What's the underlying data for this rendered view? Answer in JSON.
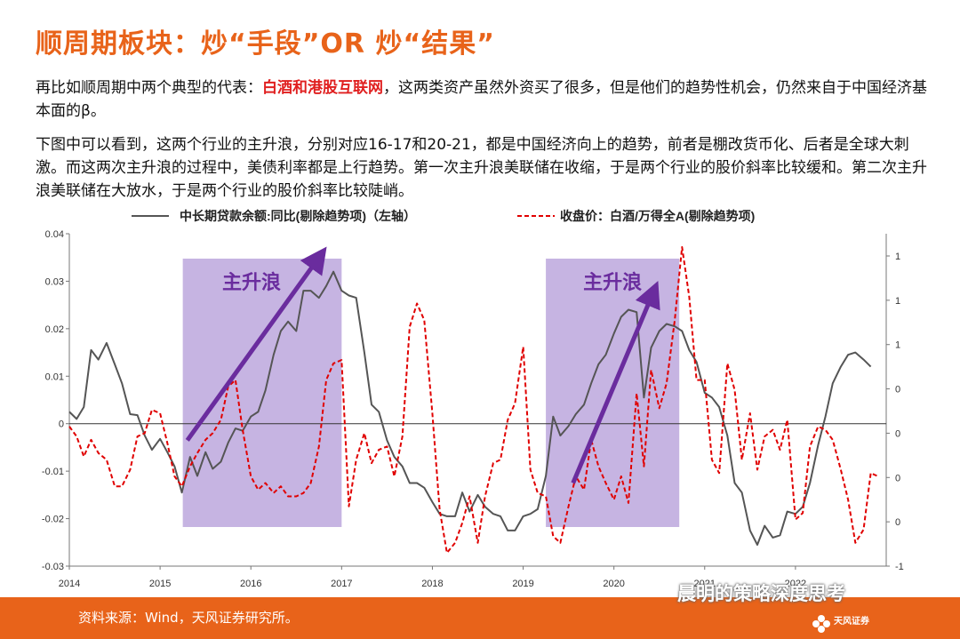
{
  "title": "顺周期板块：炒“手段”OR 炒“结果”",
  "paragraph1": {
    "before": "再比如顺周期中两个典型的代表：",
    "highlight": "白酒和港股互联网",
    "after": "，这两类资产虽然外资买了很多，但是他们的趋势性机会，仍然来自于中国经济基本面的β。"
  },
  "paragraph2": "下图中可以看到，这两个行业的主升浪，分别对应16-17和20-21，都是中国经济向上的趋势，前者是棚改货币化、后者是全球大刺激。而这两次主升浪的过程中，美债利率都是上行趋势。第一次主升浪美联储在收缩，于是两个行业的股价斜率比较缓和。第二次主升浪美联储在大放水，于是两个行业的股价斜率比较陡峭。",
  "footer": {
    "source": "资料来源：Wind，天风证券研究所。",
    "wechat": "晨明的策略深度思考",
    "logo": "天风证券"
  },
  "colors": {
    "accent": "#E8631A",
    "highlight": "#E02020",
    "series1": "#555555",
    "series2": "#E00000",
    "band": "#B39BD8",
    "arrow": "#6A2C9E"
  },
  "chart_data": {
    "type": "line",
    "x_ticks": [
      "2014",
      "2015",
      "2016",
      "2017",
      "2018",
      "2019",
      "2020",
      "2021",
      "2022"
    ],
    "x_range": [
      2014.0,
      2023.0
    ],
    "left_axis": {
      "ticks": [
        "0.04",
        "0.03",
        "0.02",
        "0.01",
        "0",
        "-0.01",
        "-0.02",
        "-0.03"
      ],
      "range": [
        -0.03,
        0.04
      ]
    },
    "right_axis": {
      "ticks": [
        "1",
        "1",
        "1",
        "0",
        "0",
        "0",
        "0",
        "-1"
      ],
      "range": [
        -1.0,
        1.0
      ]
    },
    "series": [
      {
        "name": "中长期贷款余额:同比(剔除趋势项)（左轴）",
        "axis": "left",
        "style": "solid",
        "points": [
          [
            2014.0,
            0.0025
          ],
          [
            2014.08,
            0.001
          ],
          [
            2014.16,
            0.0035
          ],
          [
            2014.24,
            0.0155
          ],
          [
            2014.32,
            0.0135
          ],
          [
            2014.41,
            0.017
          ],
          [
            2014.5,
            0.0125
          ],
          [
            2014.58,
            0.0085
          ],
          [
            2014.67,
            0.002
          ],
          [
            2014.75,
            0.0018
          ],
          [
            2014.83,
            -0.0025
          ],
          [
            2014.91,
            -0.0055
          ],
          [
            2015.0,
            -0.0032
          ],
          [
            2015.08,
            -0.006
          ],
          [
            2015.16,
            -0.009
          ],
          [
            2015.24,
            -0.0145
          ],
          [
            2015.33,
            -0.007
          ],
          [
            2015.41,
            -0.011
          ],
          [
            2015.5,
            -0.006
          ],
          [
            2015.58,
            -0.0095
          ],
          [
            2015.67,
            -0.008
          ],
          [
            2015.75,
            -0.004
          ],
          [
            2015.83,
            -0.001
          ],
          [
            2015.91,
            -0.0015
          ],
          [
            2016.0,
            0.0015
          ],
          [
            2016.08,
            0.0025
          ],
          [
            2016.16,
            0.007
          ],
          [
            2016.25,
            0.0145
          ],
          [
            2016.33,
            0.0195
          ],
          [
            2016.41,
            0.0215
          ],
          [
            2016.5,
            0.0195
          ],
          [
            2016.58,
            0.028
          ],
          [
            2016.66,
            0.028
          ],
          [
            2016.75,
            0.0265
          ],
          [
            2016.83,
            0.029
          ],
          [
            2016.91,
            0.032
          ],
          [
            2017.0,
            0.028
          ],
          [
            2017.08,
            0.027
          ],
          [
            2017.16,
            0.0265
          ],
          [
            2017.25,
            0.015
          ],
          [
            2017.33,
            0.004
          ],
          [
            2017.41,
            0.0025
          ],
          [
            2017.5,
            -0.0035
          ],
          [
            2017.58,
            -0.007
          ],
          [
            2017.67,
            -0.009
          ],
          [
            2017.75,
            -0.0125
          ],
          [
            2017.83,
            -0.0125
          ],
          [
            2017.91,
            -0.0135
          ],
          [
            2018.0,
            -0.0165
          ],
          [
            2018.08,
            -0.019
          ],
          [
            2018.16,
            -0.0195
          ],
          [
            2018.25,
            -0.0195
          ],
          [
            2018.33,
            -0.0145
          ],
          [
            2018.41,
            -0.0185
          ],
          [
            2018.5,
            -0.015
          ],
          [
            2018.58,
            -0.0175
          ],
          [
            2018.67,
            -0.019
          ],
          [
            2018.75,
            -0.0195
          ],
          [
            2018.83,
            -0.0225
          ],
          [
            2018.91,
            -0.0225
          ],
          [
            2019.0,
            -0.0195
          ],
          [
            2019.08,
            -0.019
          ],
          [
            2019.16,
            -0.018
          ],
          [
            2019.25,
            -0.011
          ],
          [
            2019.33,
            0.0015
          ],
          [
            2019.41,
            -0.0025
          ],
          [
            2019.5,
            -0.0005
          ],
          [
            2019.58,
            0.002
          ],
          [
            2019.67,
            0.004
          ],
          [
            2019.75,
            0.0085
          ],
          [
            2019.83,
            0.0125
          ],
          [
            2019.91,
            0.0145
          ],
          [
            2020.0,
            0.019
          ],
          [
            2020.08,
            0.0225
          ],
          [
            2020.16,
            0.024
          ],
          [
            2020.25,
            0.0235
          ],
          [
            2020.33,
            0.0055
          ],
          [
            2020.41,
            0.016
          ],
          [
            2020.5,
            0.0195
          ],
          [
            2020.58,
            0.021
          ],
          [
            2020.67,
            0.0205
          ],
          [
            2020.75,
            0.0195
          ],
          [
            2020.83,
            0.0155
          ],
          [
            2020.91,
            0.013
          ],
          [
            2021.0,
            0.0065
          ],
          [
            2021.08,
            0.0055
          ],
          [
            2021.16,
            0.0035
          ],
          [
            2021.25,
            -0.0025
          ],
          [
            2021.33,
            -0.0125
          ],
          [
            2021.41,
            -0.0145
          ],
          [
            2021.5,
            -0.0225
          ],
          [
            2021.58,
            -0.0255
          ],
          [
            2021.66,
            -0.0215
          ],
          [
            2021.75,
            -0.024
          ],
          [
            2021.83,
            -0.0235
          ],
          [
            2021.91,
            -0.0185
          ],
          [
            2022.0,
            -0.019
          ],
          [
            2022.08,
            -0.0175
          ],
          [
            2022.16,
            -0.0125
          ],
          [
            2022.25,
            -0.0045
          ],
          [
            2022.33,
            0.0015
          ],
          [
            2022.41,
            0.0085
          ],
          [
            2022.5,
            0.012
          ],
          [
            2022.58,
            0.0145
          ],
          [
            2022.66,
            0.015
          ],
          [
            2022.75,
            0.0135
          ],
          [
            2022.83,
            0.012
          ]
        ]
      },
      {
        "name": "收盘价：白酒/万得全A(剔除趋势项)",
        "axis": "right",
        "style": "dashed",
        "points": [
          [
            2014.0,
            -0.16
          ],
          [
            2014.08,
            -0.22
          ],
          [
            2014.16,
            -0.34
          ],
          [
            2014.24,
            -0.24
          ],
          [
            2014.32,
            -0.32
          ],
          [
            2014.41,
            -0.36
          ],
          [
            2014.5,
            -0.52
          ],
          [
            2014.58,
            -0.52
          ],
          [
            2014.67,
            -0.42
          ],
          [
            2014.75,
            -0.22
          ],
          [
            2014.83,
            -0.2
          ],
          [
            2014.91,
            -0.06
          ],
          [
            2015.0,
            -0.08
          ],
          [
            2015.08,
            -0.26
          ],
          [
            2015.16,
            -0.46
          ],
          [
            2015.24,
            -0.52
          ],
          [
            2015.33,
            -0.4
          ],
          [
            2015.41,
            -0.32
          ],
          [
            2015.5,
            -0.24
          ],
          [
            2015.58,
            -0.2
          ],
          [
            2015.67,
            -0.12
          ],
          [
            2015.75,
            0.08
          ],
          [
            2015.83,
            0.12
          ],
          [
            2015.91,
            -0.18
          ],
          [
            2016.0,
            -0.46
          ],
          [
            2016.08,
            -0.54
          ],
          [
            2016.16,
            -0.5
          ],
          [
            2016.25,
            -0.56
          ],
          [
            2016.33,
            -0.52
          ],
          [
            2016.41,
            -0.58
          ],
          [
            2016.5,
            -0.58
          ],
          [
            2016.58,
            -0.56
          ],
          [
            2016.66,
            -0.5
          ],
          [
            2016.75,
            -0.28
          ],
          [
            2016.83,
            0.12
          ],
          [
            2016.91,
            0.22
          ],
          [
            2017.0,
            0.24
          ],
          [
            2017.08,
            -0.64
          ],
          [
            2017.16,
            -0.36
          ],
          [
            2017.25,
            -0.2
          ],
          [
            2017.33,
            -0.38
          ],
          [
            2017.41,
            -0.3
          ],
          [
            2017.5,
            -0.28
          ],
          [
            2017.58,
            -0.46
          ],
          [
            2017.67,
            -0.22
          ],
          [
            2017.75,
            0.44
          ],
          [
            2017.83,
            0.58
          ],
          [
            2017.91,
            0.48
          ],
          [
            2018.0,
            -0.08
          ],
          [
            2018.08,
            -0.66
          ],
          [
            2018.16,
            -0.92
          ],
          [
            2018.25,
            -0.86
          ],
          [
            2018.33,
            -0.74
          ],
          [
            2018.41,
            -0.58
          ],
          [
            2018.5,
            -0.86
          ],
          [
            2018.58,
            -0.58
          ],
          [
            2018.67,
            -0.38
          ],
          [
            2018.75,
            -0.36
          ],
          [
            2018.83,
            -0.12
          ],
          [
            2018.91,
            -0.02
          ],
          [
            2019.0,
            0.32
          ],
          [
            2019.08,
            -0.42
          ],
          [
            2019.16,
            -0.56
          ],
          [
            2019.25,
            -0.58
          ],
          [
            2019.33,
            -0.82
          ],
          [
            2019.41,
            -0.86
          ],
          [
            2019.5,
            -0.64
          ],
          [
            2019.58,
            -0.46
          ],
          [
            2019.67,
            -0.54
          ],
          [
            2019.75,
            -0.24
          ],
          [
            2019.83,
            -0.4
          ],
          [
            2019.91,
            -0.5
          ],
          [
            2020.0,
            -0.6
          ],
          [
            2020.08,
            -0.46
          ],
          [
            2020.16,
            -0.62
          ],
          [
            2020.25,
            0.04
          ],
          [
            2020.33,
            -0.4
          ],
          [
            2020.41,
            0.18
          ],
          [
            2020.5,
            -0.05
          ],
          [
            2020.58,
            0.1
          ],
          [
            2020.67,
            0.48
          ],
          [
            2020.75,
            0.92
          ],
          [
            2020.83,
            0.62
          ],
          [
            2020.91,
            0.12
          ],
          [
            2021.0,
            0.12
          ],
          [
            2021.08,
            -0.36
          ],
          [
            2021.16,
            -0.44
          ],
          [
            2021.25,
            0.22
          ],
          [
            2021.33,
            0.06
          ],
          [
            2021.41,
            -0.36
          ],
          [
            2021.5,
            -0.08
          ],
          [
            2021.58,
            -0.42
          ],
          [
            2021.66,
            -0.22
          ],
          [
            2021.75,
            -0.18
          ],
          [
            2021.83,
            -0.3
          ],
          [
            2021.91,
            -0.12
          ],
          [
            2022.0,
            -0.72
          ],
          [
            2022.08,
            -0.68
          ],
          [
            2022.16,
            -0.28
          ],
          [
            2022.25,
            -0.16
          ],
          [
            2022.33,
            -0.18
          ],
          [
            2022.41,
            -0.24
          ],
          [
            2022.5,
            -0.42
          ],
          [
            2022.58,
            -0.6
          ],
          [
            2022.66,
            -0.86
          ],
          [
            2022.75,
            -0.78
          ],
          [
            2022.83,
            -0.44
          ],
          [
            2022.91,
            -0.46
          ]
        ]
      }
    ],
    "shaded_regions": [
      {
        "x_start": 2015.25,
        "x_end": 2017.0,
        "label": "主升浪",
        "arrow_from": [
          2015.3,
          -0.0035
        ],
        "arrow_to": [
          2016.75,
          0.035
        ]
      },
      {
        "x_start": 2019.25,
        "x_end": 2020.72,
        "label": "主升浪",
        "arrow_from": [
          2019.55,
          -0.0125
        ],
        "arrow_to": [
          2020.43,
          0.0275
        ]
      }
    ],
    "zero_line": 0
  }
}
